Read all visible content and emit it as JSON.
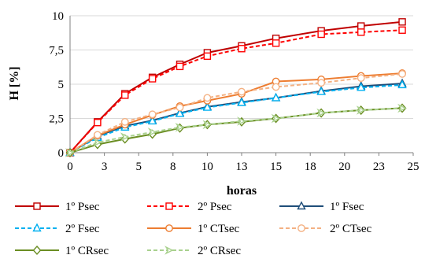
{
  "chart_data": {
    "type": "line",
    "xlabel": "horas",
    "ylabel": "H [%]",
    "xlim": [
      0,
      25
    ],
    "ylim": [
      0,
      10
    ],
    "xticks": [
      0,
      2.5,
      5,
      7.5,
      10,
      12.5,
      15,
      17.5,
      20,
      22.5,
      25
    ],
    "xtick_labels": [
      "0",
      "3",
      "5",
      "8",
      "10",
      "13",
      "15",
      "18",
      "20",
      "23",
      "25"
    ],
    "yticks": [
      0,
      2.5,
      5,
      7.5,
      10
    ],
    "ytick_labels": [
      "0",
      "2,5",
      "5",
      "7,5",
      "10"
    ],
    "grid": "horizontal",
    "legend_position": "bottom",
    "series": [
      {
        "name": "1º Psec",
        "color": "#C00000",
        "dash": "solid",
        "marker": "square",
        "x": [
          0,
          2,
          4,
          6,
          8,
          10,
          12.5,
          15,
          18.3,
          21.2,
          24.2
        ],
        "y": [
          0,
          2.25,
          4.3,
          5.5,
          6.45,
          7.3,
          7.8,
          8.35,
          8.9,
          9.25,
          9.55
        ]
      },
      {
        "name": "2º Psec",
        "color": "#FF0000",
        "dash": "dashed",
        "marker": "square",
        "x": [
          0,
          2,
          4,
          6,
          8,
          10,
          12.5,
          15,
          18.3,
          21.2,
          24.2
        ],
        "y": [
          0,
          2.2,
          4.2,
          5.4,
          6.3,
          7.05,
          7.6,
          8.0,
          8.65,
          8.8,
          8.95
        ]
      },
      {
        "name": "1º Fsec",
        "color": "#1F4E79",
        "dash": "solid",
        "marker": "triangle",
        "x": [
          0,
          2,
          4,
          6,
          8,
          10,
          12.5,
          15,
          18.3,
          21.2,
          24.2
        ],
        "y": [
          0,
          1.2,
          1.95,
          2.35,
          2.9,
          3.35,
          3.7,
          4.0,
          4.5,
          4.85,
          5.05
        ]
      },
      {
        "name": "2º Fsec",
        "color": "#00B0F0",
        "dash": "dashed",
        "marker": "triangle",
        "x": [
          0,
          2,
          4,
          6,
          8,
          10,
          12.5,
          15,
          18.3,
          21.2,
          24.2
        ],
        "y": [
          0,
          1.1,
          1.85,
          2.3,
          2.85,
          3.3,
          3.65,
          4.0,
          4.45,
          4.75,
          4.95
        ]
      },
      {
        "name": "1º CTsec",
        "color": "#ED7D31",
        "dash": "solid",
        "marker": "circle",
        "x": [
          0,
          2,
          4,
          6,
          8,
          10,
          12.5,
          15,
          18.3,
          21.2,
          24.2
        ],
        "y": [
          0,
          1.25,
          2.05,
          2.75,
          3.4,
          3.8,
          4.3,
          5.2,
          5.35,
          5.6,
          5.8
        ]
      },
      {
        "name": "2º CTsec",
        "color": "#F4B183",
        "dash": "dashed",
        "marker": "circle",
        "x": [
          0,
          2,
          4,
          6,
          8,
          10,
          12.5,
          15,
          18.3,
          21.2,
          24.2
        ],
        "y": [
          0,
          1.3,
          2.25,
          2.8,
          3.3,
          4.0,
          4.45,
          4.8,
          5.1,
          5.45,
          5.75
        ]
      },
      {
        "name": "1º CRsec",
        "color": "#6B8E23",
        "dash": "solid",
        "marker": "diamond",
        "x": [
          0,
          2,
          4,
          6,
          8,
          10,
          12.5,
          15,
          18.3,
          21.2,
          24.2
        ],
        "y": [
          0,
          0.6,
          1.0,
          1.35,
          1.8,
          2.05,
          2.25,
          2.5,
          2.9,
          3.1,
          3.25
        ]
      },
      {
        "name": "2º CRsec",
        "color": "#A9D18E",
        "dash": "dashed",
        "marker": "arrow",
        "x": [
          0,
          2,
          4,
          6,
          8,
          10,
          12.5,
          15,
          18.3,
          21.2,
          24.2
        ],
        "y": [
          0,
          0.75,
          1.15,
          1.5,
          1.85,
          2.05,
          2.3,
          2.5,
          2.9,
          3.1,
          3.25
        ]
      }
    ]
  }
}
